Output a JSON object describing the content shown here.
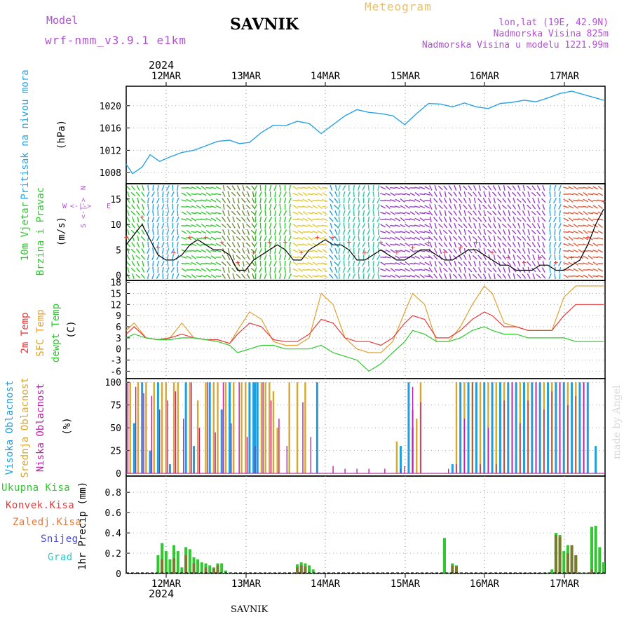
{
  "header": {
    "model_label": "Model",
    "model_name": "wrf-nmm_v3.9.1 e1km",
    "station": "SAVNIK",
    "title": "Meteogram",
    "coords": "lon,lat (19E, 42.9N)",
    "elevation": "Nadmorska Visina 825m",
    "model_elevation": "Nadmorska Visina u modelu 1221.99m",
    "footer_station": "SAVNIK",
    "watermark": "made by Angel",
    "year": "2024"
  },
  "colors": {
    "pressure": "#29a3e6",
    "temp2m": "#e83a3a",
    "sfc": "#e0a030",
    "dewpt": "#2fc82f",
    "high_cloud": "#1f9fe0",
    "mid_cloud": "#d9a72a",
    "low_cloud": "#c11ea8",
    "total_precip": "#2fc82f",
    "conv_precip": "#e83a3a",
    "frozen_precip": "#e8783a",
    "snow": "#4646e0",
    "hail": "#30c8c8",
    "purple_text": "#b24fd6"
  },
  "x_axis": {
    "labels": [
      "12MAR",
      "13MAR",
      "14MAR",
      "15MAR",
      "16MAR",
      "17MAR"
    ],
    "year": "2024"
  },
  "chart_data": [
    {
      "type": "line",
      "id": "pressure",
      "ylabel_main": "Pritisak na nivou mora",
      "ylabel_unit": "(hPa)",
      "yticks": [
        "1008",
        "1012",
        "1016",
        "1020"
      ],
      "ylim": [
        1006,
        1023.5
      ],
      "x_day_range": [
        0,
        6
      ],
      "series": [
        {
          "x": [
            0,
            0.08,
            0.2,
            0.3,
            0.42,
            0.55,
            0.7,
            0.85,
            1.0,
            1.15,
            1.3,
            1.42,
            1.55,
            1.7,
            1.85,
            2.0,
            2.15,
            2.3,
            2.45,
            2.6,
            2.75,
            2.9,
            3.05,
            3.2,
            3.35,
            3.5,
            3.65,
            3.8,
            3.95,
            4.1,
            4.25,
            4.4,
            4.55,
            4.7,
            4.85,
            5.0,
            5.15,
            5.3,
            5.45,
            5.6,
            5.75,
            5.9,
            6.0
          ],
          "y": [
            1009.5,
            1007.8,
            1009.0,
            1011.2,
            1010.0,
            1010.8,
            1011.6,
            1012.0,
            1012.8,
            1013.6,
            1013.8,
            1013.2,
            1013.4,
            1015.2,
            1016.5,
            1016.4,
            1017.2,
            1016.8,
            1015.0,
            1016.6,
            1018.2,
            1019.3,
            1018.8,
            1018.6,
            1018.2,
            1016.6,
            1018.6,
            1020.4,
            1020.3,
            1019.8,
            1020.5,
            1019.8,
            1019.5,
            1020.4,
            1020.6,
            1021.0,
            1020.7,
            1021.4,
            1022.2,
            1022.6,
            1022.0,
            1021.4,
            1021.0
          ]
        }
      ]
    },
    {
      "type": "line",
      "id": "wind",
      "ylabel_main": "10m Vjetar",
      "ylabel_sub": "Brzina i Pravac",
      "ylabel_unit": "(m/s)",
      "compass": {
        "n": "N",
        "s": "S",
        "w": "W",
        "e": "E"
      },
      "yticks": [
        "0",
        "5",
        "10",
        "15"
      ],
      "ylim": [
        -1,
        18
      ],
      "x_day_range": [
        0,
        6
      ],
      "series": [
        {
          "x": [
            0,
            0.1,
            0.2,
            0.3,
            0.4,
            0.5,
            0.6,
            0.7,
            0.8,
            0.9,
            1.0,
            1.1,
            1.2,
            1.3,
            1.4,
            1.5,
            1.6,
            1.7,
            1.8,
            1.9,
            2.0,
            2.1,
            2.2,
            2.3,
            2.4,
            2.5,
            2.6,
            2.7,
            2.8,
            2.9,
            3.0,
            3.1,
            3.2,
            3.3,
            3.4,
            3.5,
            3.6,
            3.7,
            3.8,
            3.9,
            4.0,
            4.1,
            4.2,
            4.3,
            4.4,
            4.5,
            4.6,
            4.7,
            4.8,
            4.9,
            5.0,
            5.1,
            5.2,
            5.3,
            5.4,
            5.5,
            5.6,
            5.7,
            5.8,
            5.9,
            6.0
          ],
          "y": [
            6,
            8,
            10,
            7,
            4,
            3,
            3,
            4,
            6,
            7,
            6,
            5,
            5,
            4,
            1,
            1,
            3,
            4,
            5,
            6,
            5,
            3,
            3,
            5,
            6,
            7,
            6,
            6,
            5,
            3,
            3,
            4,
            5,
            4,
            3,
            3,
            4,
            5,
            5,
            4,
            3,
            3,
            4,
            5,
            5,
            4,
            3,
            2,
            2,
            1,
            1,
            1,
            2,
            2,
            1,
            1,
            2,
            3,
            6,
            10,
            13
          ]
        }
      ],
      "wind_bands": [
        {
          "day_from": 0.0,
          "day_to": 0.25,
          "color": "#2fc82f"
        },
        {
          "day_from": 0.25,
          "day_to": 0.7,
          "color": "#29a3e6"
        },
        {
          "day_from": 0.7,
          "day_to": 1.2,
          "color": "#2fc82f"
        },
        {
          "day_from": 1.2,
          "day_to": 1.6,
          "color": "#6a8a3a"
        },
        {
          "day_from": 1.6,
          "day_to": 2.1,
          "color": "#2fc82f"
        },
        {
          "day_from": 2.1,
          "day_to": 2.55,
          "color": "#e0c830"
        },
        {
          "day_from": 2.55,
          "day_to": 2.65,
          "color": "#1f9fe0"
        },
        {
          "day_from": 2.65,
          "day_to": 3.2,
          "color": "#2fc8a0"
        },
        {
          "day_from": 3.2,
          "day_to": 3.8,
          "color": "#9a3fc8"
        },
        {
          "day_from": 3.8,
          "day_to": 5.3,
          "color": "#9a3fc8"
        },
        {
          "day_from": 5.3,
          "day_to": 5.5,
          "color": "#29a3e6"
        },
        {
          "day_from": 5.5,
          "day_to": 6.0,
          "color": "#e05a3a"
        }
      ]
    },
    {
      "type": "line",
      "id": "temperature",
      "ylabel_a": "2m Temp",
      "ylabel_b": "SFC Temp",
      "ylabel_c": "dewpt Temp",
      "ylabel_unit": "(C)",
      "yticks": [
        "-6",
        "-3",
        "0",
        "3",
        "6",
        "9",
        "12",
        "15",
        "18"
      ],
      "ylim": [
        -8,
        18.5
      ],
      "x_day_range": [
        0,
        6
      ],
      "series": [
        {
          "name": "2m Temp",
          "x": [
            0,
            0.1,
            0.25,
            0.4,
            0.55,
            0.7,
            0.85,
            1.0,
            1.15,
            1.3,
            1.4,
            1.55,
            1.7,
            1.85,
            2.0,
            2.15,
            2.3,
            2.45,
            2.6,
            2.75,
            2.9,
            3.05,
            3.2,
            3.35,
            3.5,
            3.6,
            3.75,
            3.9,
            4.05,
            4.2,
            4.35,
            4.5,
            4.6,
            4.75,
            4.9,
            5.05,
            5.2,
            5.35,
            5.5,
            5.65,
            5.8,
            5.95,
            6.0
          ],
          "y": [
            4,
            6,
            3,
            2.5,
            3,
            4,
            3,
            2.5,
            2.5,
            1.5,
            4,
            7,
            6,
            2.5,
            2,
            2,
            4,
            8,
            7,
            3,
            2,
            2,
            1,
            3,
            7,
            9,
            8,
            3,
            3,
            5,
            8,
            10,
            9,
            6,
            6,
            5,
            5,
            5,
            9,
            12,
            12,
            12,
            12
          ]
        },
        {
          "name": "SFC Temp",
          "x": [
            0,
            0.1,
            0.25,
            0.4,
            0.55,
            0.7,
            0.85,
            1.0,
            1.15,
            1.3,
            1.4,
            1.55,
            1.7,
            1.85,
            2.0,
            2.15,
            2.3,
            2.45,
            2.6,
            2.75,
            2.9,
            3.05,
            3.2,
            3.35,
            3.5,
            3.6,
            3.75,
            3.9,
            4.05,
            4.2,
            4.35,
            4.5,
            4.6,
            4.75,
            4.9,
            5.05,
            5.2,
            5.35,
            5.5,
            5.65,
            5.8,
            5.95,
            6.0
          ],
          "y": [
            5,
            7,
            3,
            2.5,
            3,
            7,
            3,
            2.5,
            2.5,
            1.5,
            5,
            10,
            8,
            2,
            1,
            1,
            3,
            15,
            12,
            3,
            0,
            -1,
            -1,
            2,
            10,
            15,
            12,
            2,
            2,
            6,
            12,
            17,
            15,
            7,
            6,
            5,
            5,
            5,
            14,
            17,
            17,
            17,
            17
          ]
        },
        {
          "name": "dewpt Temp",
          "x": [
            0,
            0.1,
            0.25,
            0.4,
            0.55,
            0.7,
            0.85,
            1.0,
            1.15,
            1.3,
            1.4,
            1.55,
            1.7,
            1.85,
            2.0,
            2.15,
            2.3,
            2.45,
            2.6,
            2.75,
            2.9,
            3.05,
            3.2,
            3.35,
            3.5,
            3.6,
            3.75,
            3.9,
            4.05,
            4.2,
            4.35,
            4.5,
            4.6,
            4.75,
            4.9,
            5.05,
            5.2,
            5.35,
            5.5,
            5.65,
            5.8,
            5.95,
            6.0
          ],
          "y": [
            3,
            4,
            3,
            2.5,
            2.5,
            3,
            3,
            2.5,
            2,
            1,
            -1,
            0,
            1,
            1,
            0,
            0,
            0,
            1,
            -1,
            -2,
            -3,
            -6,
            -4,
            -1,
            2,
            5,
            4,
            2,
            2,
            3,
            5,
            6,
            5,
            4,
            4,
            3,
            3,
            3,
            3,
            2,
            2,
            2,
            2
          ]
        }
      ]
    },
    {
      "type": "bar",
      "id": "cloud",
      "ylabel_a": "Visoka Oblacnost",
      "ylabel_b": "Srednja Oblacnost",
      "ylabel_c": "Niska Oblacnost",
      "ylabel_unit": "(%)",
      "yticks": [
        "0",
        "25",
        "50",
        "75",
        "100"
      ],
      "ylim": [
        -3,
        104
      ],
      "x_day_range": [
        0,
        6
      ],
      "series": [
        {
          "name": "Visoka Oblacnost",
          "x": [
            0.1,
            0.2,
            0.3,
            0.4,
            0.55,
            0.75,
            0.85,
            1.05,
            1.2,
            1.3,
            1.55,
            1.6,
            1.62,
            1.65,
            2.4,
            3.45,
            3.55,
            3.6,
            4.1,
            4.2,
            4.3,
            4.4,
            4.5,
            4.6,
            4.7,
            4.8,
            4.9,
            5.0,
            5.1,
            5.2,
            5.3,
            5.4,
            5.5,
            5.6,
            5.7,
            5.8,
            5.9
          ],
          "y": [
            55,
            100,
            25,
            100,
            10,
            100,
            30,
            100,
            70,
            100,
            100,
            100,
            100,
            100,
            100,
            30,
            100,
            50,
            10,
            100,
            100,
            100,
            100,
            100,
            100,
            100,
            100,
            100,
            100,
            100,
            100,
            100,
            100,
            100,
            100,
            100,
            30
          ]
        },
        {
          "name": "Srednja Oblacnost",
          "x": [
            0.05,
            0.15,
            0.25,
            0.35,
            0.45,
            0.5,
            0.6,
            0.65,
            0.8,
            0.9,
            1.0,
            1.1,
            1.15,
            1.25,
            1.35,
            1.45,
            1.5,
            1.7,
            1.75,
            1.8,
            1.85,
            1.9,
            2.05,
            2.15,
            2.25,
            3.4,
            3.6,
            3.65,
            3.7,
            4.15,
            4.25,
            4.35,
            4.45,
            4.55,
            4.65,
            4.75,
            4.85,
            4.95,
            5.05,
            5.15,
            5.25,
            5.35,
            5.45,
            5.55,
            5.65,
            5.75
          ],
          "y": [
            100,
            100,
            100,
            100,
            100,
            100,
            100,
            100,
            100,
            80,
            100,
            100,
            100,
            100,
            100,
            100,
            100,
            100,
            100,
            100,
            90,
            50,
            100,
            100,
            100,
            35,
            70,
            60,
            100,
            100,
            100,
            100,
            100,
            100,
            100,
            100,
            100,
            100,
            100,
            100,
            100,
            100,
            100,
            100,
            100,
            100
          ]
        },
        {
          "name": "Niska Oblacnost",
          "x": [
            0.02,
            0.12,
            0.22,
            0.32,
            0.42,
            0.52,
            0.62,
            0.72,
            0.82,
            0.92,
            1.02,
            1.12,
            1.22,
            1.32,
            1.42,
            1.52,
            1.62,
            1.72,
            1.82,
            1.92,
            2.02,
            2.22,
            2.32,
            2.6,
            2.75,
            2.9,
            3.05,
            3.25,
            3.45,
            3.5,
            3.6,
            3.7,
            4.05,
            4.15,
            4.25,
            4.35,
            4.45,
            4.55,
            4.65,
            4.75,
            4.85,
            4.95,
            5.05,
            5.15,
            5.25,
            5.35,
            5.45,
            5.55,
            5.65,
            5.75
          ],
          "y": [
            100,
            95,
            88,
            85,
            70,
            80,
            90,
            60,
            100,
            50,
            100,
            45,
            100,
            55,
            100,
            40,
            30,
            100,
            80,
            60,
            30,
            78,
            40,
            8,
            5,
            5,
            5,
            5,
            5,
            8,
            95,
            78,
            5,
            10,
            60,
            100,
            10,
            50,
            10,
            80,
            100,
            55,
            80,
            100,
            70,
            90,
            100,
            75,
            85,
            100
          ]
        }
      ]
    },
    {
      "type": "bar",
      "id": "precip",
      "legend": [
        "Ukupna Kisa",
        "Konvek.Kisa",
        "Zaledj.Kisa",
        "Snijeg",
        "Grad"
      ],
      "ylabel_unit": "1hr Precip (mm)",
      "yticks": [
        "0",
        "0.2",
        "0.4",
        "0.6",
        "0.8"
      ],
      "ylim": [
        0,
        0.96
      ],
      "x_day_range": [
        0,
        6
      ],
      "series": [
        {
          "name": "Ukupna Kisa",
          "x": [
            0.4,
            0.45,
            0.5,
            0.55,
            0.6,
            0.65,
            0.7,
            0.75,
            0.8,
            0.85,
            0.9,
            0.95,
            1.0,
            1.05,
            1.1,
            1.15,
            1.2,
            1.25,
            1.3,
            2.1,
            2.15,
            2.2,
            2.25,
            2.3,
            2.35,
            4.0,
            4.05,
            4.1,
            4.15,
            4.2,
            5.3,
            5.35,
            5.4,
            5.45,
            5.5,
            5.55,
            5.6,
            5.65,
            5.7,
            5.75,
            5.8,
            5.85,
            5.9,
            5.95,
            6.0
          ],
          "y": [
            0.18,
            0.3,
            0.22,
            0.14,
            0.28,
            0.22,
            0.06,
            0.26,
            0.24,
            0.16,
            0.14,
            0.11,
            0.1,
            0.08,
            0.06,
            0.1,
            0.1,
            0.03,
            0.01,
            0.01,
            0.09,
            0.11,
            0.1,
            0.08,
            0.04,
            0.35,
            0.01,
            0.1,
            0.08,
            0.01,
            0.01,
            0.04,
            0.4,
            0.38,
            0.22,
            0.28,
            0.28,
            0.18,
            0.01,
            0.01,
            0.01,
            0.46,
            0.47,
            0.26,
            0.11
          ]
        },
        {
          "name": "Konvek.Kisa",
          "x": [
            0.45,
            0.6,
            0.75,
            0.85,
            1.0,
            1.1,
            1.15,
            2.15,
            2.2,
            2.25,
            4.1,
            4.15,
            5.4,
            5.45,
            5.55,
            5.6,
            5.65,
            5.85
          ],
          "y": [
            0.14,
            0.15,
            0.18,
            0.1,
            0.06,
            0.05,
            0.08,
            0.06,
            0.08,
            0.07,
            0.08,
            0.07,
            0.38,
            0.36,
            0.2,
            0.28,
            0.18,
            0.04
          ]
        }
      ]
    }
  ]
}
